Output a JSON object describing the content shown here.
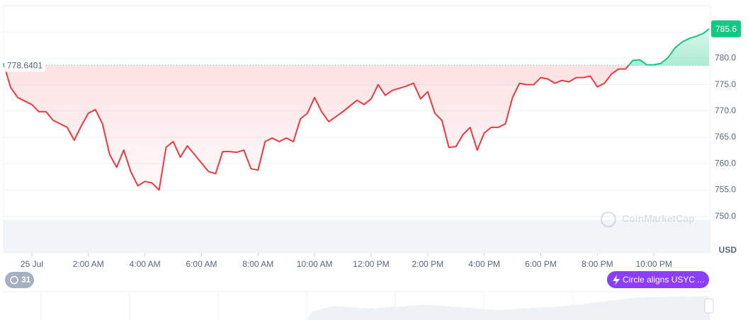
{
  "chart_data": {
    "type": "line",
    "x": [
      -1,
      -0.75,
      -0.5,
      -0.25,
      0,
      0.25,
      0.5,
      0.75,
      1,
      1.25,
      1.5,
      1.75,
      2,
      2.25,
      2.5,
      2.75,
      3,
      3.25,
      3.5,
      3.75,
      4,
      4.25,
      4.5,
      4.75,
      5,
      5.25,
      5.5,
      5.75,
      6,
      6.25,
      6.5,
      6.75,
      7,
      7.25,
      7.5,
      7.75,
      8,
      8.25,
      8.5,
      8.75,
      9,
      9.25,
      9.5,
      9.75,
      10,
      10.25,
      10.5,
      10.75,
      11,
      11.25,
      11.5,
      11.75,
      12,
      12.25,
      12.5,
      12.75,
      13,
      13.25,
      13.5,
      13.75,
      14,
      14.25,
      14.5,
      14.75,
      15,
      15.25,
      15.5,
      15.75,
      16,
      16.25,
      16.5,
      16.75,
      17,
      17.25,
      17.5,
      17.75,
      18,
      18.25,
      18.5,
      18.75,
      19,
      19.25,
      19.5,
      19.75,
      20,
      20.25,
      20.5,
      20.75,
      21,
      21.25,
      21.5,
      21.75,
      22,
      22.25,
      22.5,
      22.75,
      23,
      23.25,
      23.5,
      23.75,
      23.95
    ],
    "series": [
      {
        "values": [
          779.05,
          774.46,
          772.57,
          771.89,
          771.22,
          769.86,
          769.86,
          768.24,
          767.57,
          766.89,
          764.46,
          767.16,
          769.59,
          770.27,
          767.57,
          761.76,
          759.32,
          762.57,
          758.51,
          755.81,
          756.62,
          756.35,
          755.0,
          763.11,
          764.19,
          761.22,
          763.38,
          761.76,
          760.14,
          758.51,
          758.11,
          762.3,
          762.3,
          762.16,
          762.57,
          759.05,
          758.78,
          764.19,
          764.86,
          764.19,
          764.86,
          764.19,
          768.51,
          769.59,
          772.57,
          769.86,
          767.97,
          768.92,
          769.86,
          770.95,
          772.03,
          771.22,
          772.3,
          775.0,
          772.97,
          773.92,
          774.32,
          774.73,
          775.27,
          772.3,
          773.65,
          769.59,
          768.24,
          763.11,
          763.24,
          765.54,
          766.89,
          762.57,
          765.81,
          766.89,
          766.89,
          767.57,
          772.57,
          775.27,
          775.0,
          775.0,
          776.35,
          776.08,
          775.27,
          775.81,
          775.54,
          776.35,
          776.35,
          776.62,
          774.59,
          775.27,
          777.03,
          777.97,
          777.97,
          779.59,
          779.73,
          778.78,
          778.78,
          779.05,
          780.14,
          782.03,
          783.11,
          783.78,
          784.19,
          784.73,
          785.6
        ],
        "color_up": "#16c784",
        "color_down": "#ea3943"
      }
    ],
    "baseline": 778.6401,
    "current_price": 785.6,
    "xlim": [
      -1,
      24
    ],
    "xticks": [
      {
        "value": 0,
        "label": "25 Jul"
      },
      {
        "value": 2,
        "label": "2:00 AM"
      },
      {
        "value": 4,
        "label": "4:00 AM"
      },
      {
        "value": 6,
        "label": "6:00 AM"
      },
      {
        "value": 8,
        "label": "8:00 AM"
      },
      {
        "value": 10,
        "label": "10:00 AM"
      },
      {
        "value": 12,
        "label": "12:00 PM"
      },
      {
        "value": 14,
        "label": "2:00 PM"
      },
      {
        "value": 16,
        "label": "4:00 PM"
      },
      {
        "value": 18,
        "label": "6:00 PM"
      },
      {
        "value": 20,
        "label": "8:00 PM"
      },
      {
        "value": 22,
        "label": "10:00 PM"
      }
    ],
    "ylim": [
      750,
      790
    ],
    "yticks": [
      {
        "value": 750,
        "label": "750.0"
      },
      {
        "value": 755,
        "label": "755.0"
      },
      {
        "value": 760,
        "label": "760.0"
      },
      {
        "value": 765,
        "label": "765.0"
      },
      {
        "value": 770,
        "label": "770.0"
      },
      {
        "value": 775,
        "label": "775.0"
      },
      {
        "value": 780,
        "label": "780.0"
      },
      {
        "value": 785,
        "label": ""
      }
    ],
    "grid": true,
    "unit": "USD",
    "watermark": "CoinMarketCap",
    "event_count": "31",
    "event_label": "Circle aligns USYC ..."
  }
}
